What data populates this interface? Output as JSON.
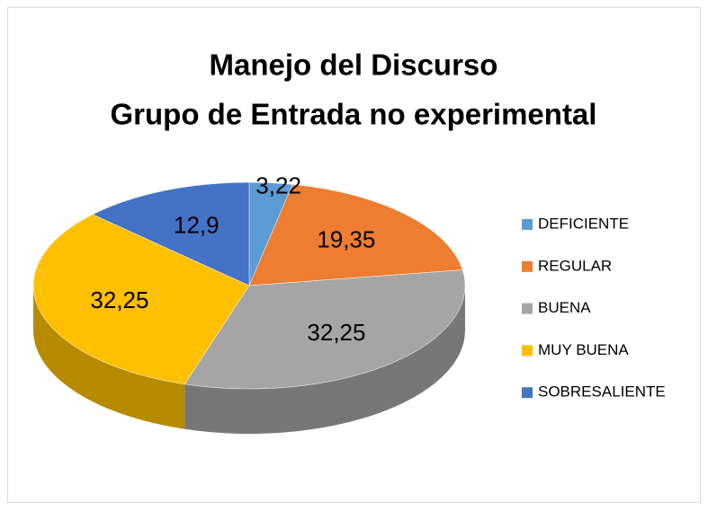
{
  "chart_data": {
    "type": "pie3d",
    "title": [
      "Manejo del Discurso",
      "Grupo de Entrada no experimental"
    ],
    "categories": [
      "DEFICIENTE",
      "REGULAR",
      "BUENA",
      "MUY BUENA",
      "SOBRESALIENTE"
    ],
    "values": [
      3.22,
      19.35,
      32.25,
      32.25,
      12.9
    ],
    "value_labels": [
      "3,22",
      "19,35",
      "32,25",
      "32,25",
      "12,9"
    ],
    "colors": [
      "#5b9bd5",
      "#ed7d31",
      "#a5a5a5",
      "#ffc000",
      "#4472c4"
    ],
    "legend": "right"
  }
}
